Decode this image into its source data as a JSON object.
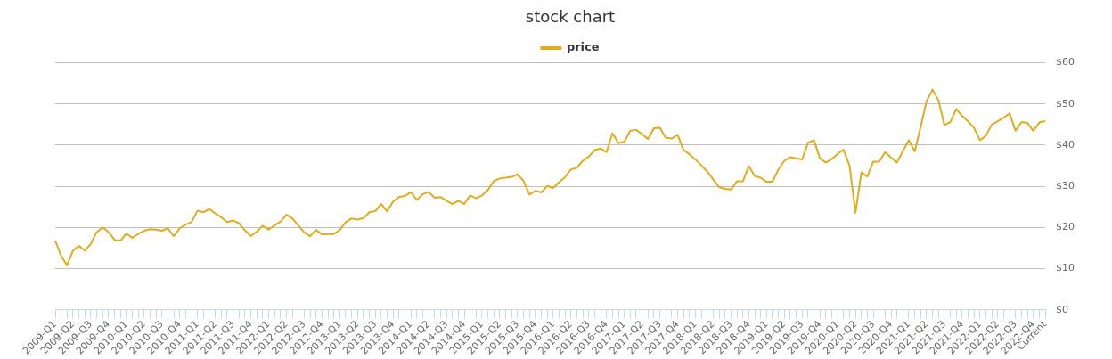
{
  "chart_data": {
    "type": "line",
    "title": "stock chart",
    "categories": [
      "2009-Q1",
      null,
      null,
      "2009-Q2",
      null,
      null,
      "2009-Q3",
      null,
      null,
      "2009-Q4",
      null,
      null,
      "2010-Q1",
      null,
      null,
      "2010-Q2",
      null,
      null,
      "2010-Q3",
      null,
      null,
      "2010-Q4",
      null,
      null,
      "2011-Q1",
      null,
      null,
      "2011-Q2",
      null,
      null,
      "2011-Q3",
      null,
      null,
      "2011-Q4",
      null,
      null,
      "2012-Q1",
      null,
      null,
      "2012-Q2",
      null,
      null,
      "2012-Q3",
      null,
      null,
      "2012-Q4",
      null,
      null,
      "2013-Q1",
      null,
      null,
      "2013-Q2",
      null,
      null,
      "2013-Q3",
      null,
      null,
      "2013-Q4",
      null,
      null,
      "2014-Q1",
      null,
      null,
      "2014-Q2",
      null,
      null,
      "2014-Q3",
      null,
      null,
      "2014-Q4",
      null,
      null,
      "2015-Q1",
      null,
      null,
      "2015-Q2",
      null,
      null,
      "2015-Q3",
      null,
      null,
      "2015-Q4",
      null,
      null,
      "2016-Q1",
      null,
      null,
      "2016-Q2",
      null,
      null,
      "2016-Q3",
      null,
      null,
      "2016-Q4",
      null,
      null,
      "2017-Q1",
      null,
      null,
      "2017-Q2",
      null,
      null,
      "2017-Q3",
      null,
      null,
      "2017-Q4",
      null,
      null,
      "2018-Q1",
      null,
      null,
      "2018-Q2",
      null,
      null,
      "2018-Q3",
      null,
      null,
      "2018-Q4",
      null,
      null,
      "2019-Q1",
      null,
      null,
      "2019-Q2",
      null,
      null,
      "2019-Q3",
      null,
      null,
      "2019-Q4",
      null,
      null,
      "2020-Q1",
      null,
      null,
      "2020-Q2",
      null,
      null,
      "2020-Q3",
      null,
      null,
      "2020-Q4",
      null,
      null,
      "2021-Q1",
      null,
      null,
      "2021-Q2",
      null,
      null,
      "2021-Q3",
      null,
      null,
      "2021-Q4",
      null,
      null,
      "2022-Q1",
      null,
      null,
      "2022-Q2",
      null,
      null,
      "2022-Q3",
      null,
      null,
      "2022-Q4",
      null,
      "Current"
    ],
    "series": [
      {
        "name": "price",
        "color": "#e0ab1e",
        "values": [
          16.8,
          13.1,
          10.8,
          14.4,
          15.5,
          14.4,
          16,
          18.9,
          20,
          18.9,
          17,
          16.8,
          18.5,
          17.5,
          18.4,
          19.2,
          19.6,
          19.5,
          19.2,
          19.8,
          17.9,
          19.8,
          20.7,
          21.3,
          24.1,
          23.7,
          24.5,
          23.4,
          22.5,
          21.3,
          21.7,
          21,
          19.3,
          17.9,
          19,
          20.4,
          19.5,
          20.5,
          21.4,
          23.1,
          22.2,
          20.5,
          18.8,
          17.9,
          19.4,
          18.3,
          18.4,
          18.4,
          19.4,
          21.3,
          22.2,
          21.9,
          22.3,
          23.7,
          24,
          25.7,
          23.9,
          26.3,
          27.4,
          27.7,
          28.6,
          26.7,
          28.1,
          28.6,
          27.2,
          27.4,
          26.5,
          25.7,
          26.5,
          25.7,
          27.8,
          27.1,
          27.8,
          29.1,
          31.3,
          31.9,
          32.1,
          32.3,
          32.9,
          31.3,
          28,
          28.9,
          28.5,
          30.1,
          29.6,
          31,
          32.2,
          34.1,
          34.5,
          36.2,
          37.2,
          38.8,
          39.2,
          38.3,
          42.9,
          40.5,
          40.8,
          43.5,
          43.7,
          42.7,
          41.5,
          44.1,
          44.2,
          41.8,
          41.6,
          42.5,
          38.8,
          37.8,
          36.5,
          35.1,
          33.6,
          31.7,
          29.8,
          29.4,
          29.2,
          31.2,
          31.2,
          34.9,
          32.5,
          32.1,
          31.1,
          31.1,
          34.1,
          36.2,
          37.1,
          36.8,
          36.5,
          40.6,
          41.2,
          36.8,
          35.8,
          36.6,
          37.9,
          38.9,
          35,
          23.6,
          33.4,
          32.4,
          36,
          36,
          38.3,
          37,
          35.8,
          38.6,
          41.2,
          38.5,
          44.5,
          50.7,
          53.5,
          50.9,
          44.9,
          45.6,
          48.8,
          47.1,
          45.8,
          44.2,
          41.2,
          42.3,
          45,
          45.8,
          46.7,
          47.7,
          43.5,
          45.6,
          45.4,
          43.5,
          45.5,
          45.9
        ]
      }
    ],
    "ylim": [
      0,
      60
    ],
    "yticks": [
      {
        "value": 0,
        "label": "$0"
      },
      {
        "value": 10,
        "label": "$10"
      },
      {
        "value": 20,
        "label": "$20"
      },
      {
        "value": 30,
        "label": "$30"
      },
      {
        "value": 40,
        "label": "$40"
      },
      {
        "value": 50,
        "label": "$50"
      },
      {
        "value": 60,
        "label": "$60"
      }
    ],
    "grid": "y",
    "legend": "top",
    "marker": "none",
    "line_style": "solid"
  }
}
